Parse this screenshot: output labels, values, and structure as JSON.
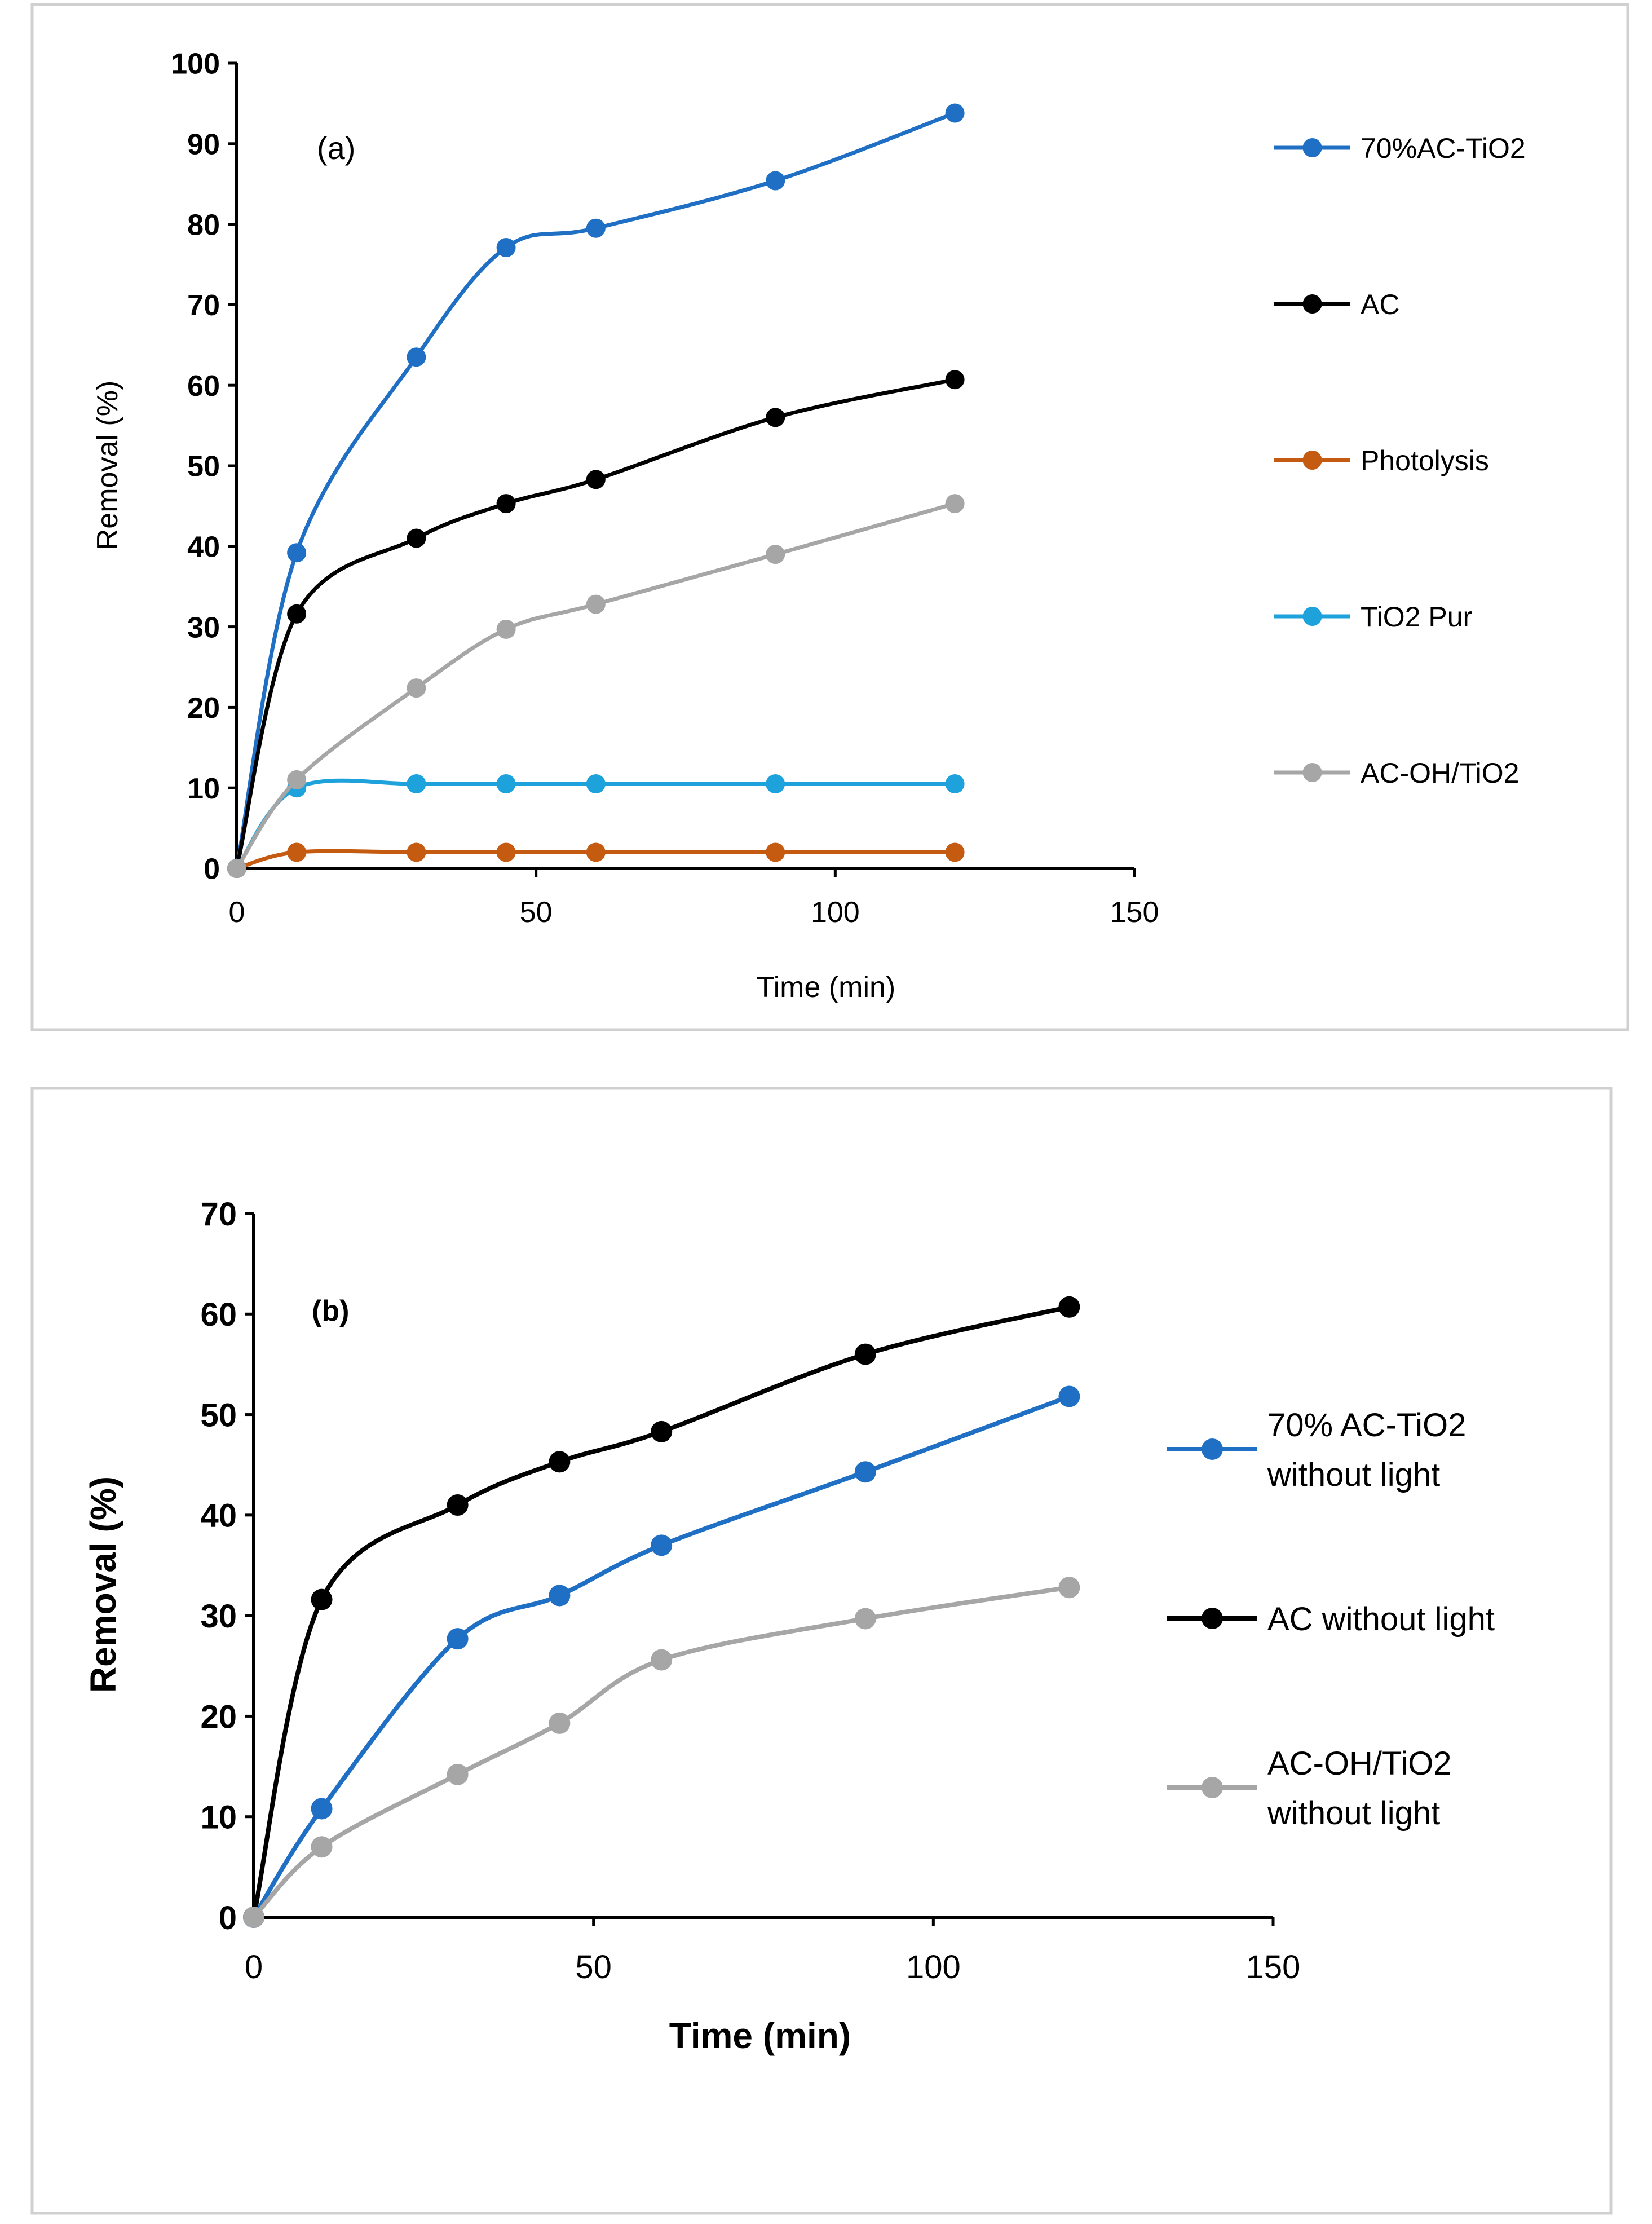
{
  "chart_data": [
    {
      "type": "line",
      "panel_label": "(a)",
      "title": "",
      "xlabel": "Time (min)",
      "ylabel": "Removal (%)",
      "xlim": [
        0,
        150
      ],
      "ylim": [
        0,
        100
      ],
      "x_ticks": [
        0,
        50,
        100,
        150
      ],
      "y_ticks": [
        0,
        10,
        20,
        30,
        40,
        50,
        60,
        70,
        80,
        90,
        100
      ],
      "grid": false,
      "legend_position": "right",
      "x": [
        0,
        10,
        30,
        45,
        60,
        90,
        120
      ],
      "series": [
        {
          "name": "70%AC-TiO2",
          "color": "#1f6fc5",
          "values": [
            0,
            39.2,
            63.5,
            77.1,
            79.5,
            85.4,
            93.8
          ]
        },
        {
          "name": "AC",
          "color": "#000000",
          "values": [
            0,
            31.6,
            41.0,
            45.3,
            48.3,
            56.0,
            60.7
          ]
        },
        {
          "name": "Photolysis",
          "color": "#c55a11",
          "values": [
            0,
            2.0,
            2.0,
            2.0,
            2.0,
            2.0,
            2.0
          ]
        },
        {
          "name": "TiO2 Pur",
          "color": "#1ea2dc",
          "values": [
            0,
            10.0,
            10.5,
            10.5,
            10.5,
            10.5,
            10.5
          ]
        },
        {
          "name": "AC-OH/TiO2",
          "color": "#a6a6a6",
          "values": [
            0,
            11.0,
            22.4,
            29.7,
            32.8,
            39.0,
            45.3
          ]
        }
      ]
    },
    {
      "type": "line",
      "panel_label": "(b)",
      "title": "",
      "xlabel": "Time (min)",
      "ylabel": "Removal (%)",
      "xlim": [
        0,
        150
      ],
      "ylim": [
        0,
        70
      ],
      "x_ticks": [
        0,
        50,
        100,
        150
      ],
      "y_ticks": [
        0,
        10,
        20,
        30,
        40,
        50,
        60,
        70
      ],
      "grid": false,
      "legend_position": "right",
      "x": [
        0,
        10,
        30,
        45,
        60,
        90,
        120
      ],
      "series": [
        {
          "name": "AC without light",
          "color": "#000000",
          "values": [
            0,
            31.6,
            41.0,
            45.3,
            48.3,
            56.0,
            60.7
          ]
        },
        {
          "name": "70% AC-TiO2 without light",
          "color": "#1f6fc5",
          "values": [
            0,
            10.8,
            27.7,
            32.0,
            37.0,
            44.3,
            51.8
          ]
        },
        {
          "name": "AC-OH/TiO2 without light",
          "color": "#a6a6a6",
          "values": [
            0,
            7.0,
            14.2,
            19.3,
            25.6,
            29.7,
            32.8
          ]
        }
      ],
      "legend_order": [
        1,
        0,
        2
      ],
      "legend_lines": [
        [
          "70% AC-TiO2",
          "without light"
        ],
        [
          "AC without light"
        ],
        [
          "AC-OH/TiO2",
          "without light"
        ]
      ]
    }
  ]
}
